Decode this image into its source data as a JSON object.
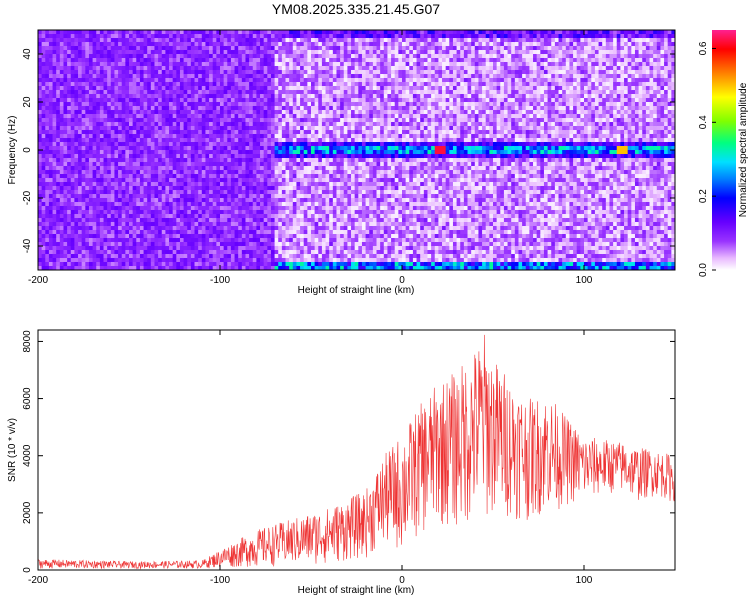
{
  "title": "YM08.2025.335.21.45.G07",
  "chart_data": [
    {
      "type": "heatmap",
      "xlabel": "Height of straight line (km)",
      "ylabel": "Frequency (Hz)",
      "xlim": [
        -200,
        150
      ],
      "ylim": [
        -50,
        50
      ],
      "x_ticks": [
        -200,
        -100,
        0,
        100
      ],
      "y_ticks": [
        -40,
        -20,
        0,
        20,
        40
      ],
      "colorbar": {
        "label": "Normalized spectral amplitude",
        "range": [
          0,
          0.65
        ],
        "ticks": [
          0.0,
          0.2,
          0.4,
          0.6
        ],
        "colors": [
          "#ffffff",
          "#e8b8ff",
          "#9933ff",
          "#6600ff",
          "#0000ff",
          "#0080ff",
          "#00e0ff",
          "#00ff80",
          "#80ff00",
          "#ffff00",
          "#ff8000",
          "#ff0000",
          "#ff2090"
        ]
      },
      "features": [
        {
          "name": "Strong line at 0 Hz",
          "x_range": [
            -70,
            150
          ],
          "frequency": 0,
          "amplitude": 0.35
        },
        {
          "name": "Edge band at -50 Hz",
          "x_range": [
            -70,
            150
          ],
          "frequency": -48,
          "amplitude": 0.28
        },
        {
          "name": "Edge band at +50 Hz",
          "x_range": [
            -70,
            150
          ],
          "frequency": 48,
          "amplitude": 0.15
        },
        {
          "name": "Noise background",
          "x_range": [
            -200,
            -70
          ],
          "amplitude": 0.09
        },
        {
          "name": "Noise background",
          "x_range": [
            -70,
            150
          ],
          "amplitude": 0.03
        }
      ]
    },
    {
      "type": "line",
      "xlabel": "Height of straight line (km)",
      "ylabel": "SNR (10 * v/v)",
      "xlim": [
        -200,
        150
      ],
      "ylim": [
        0,
        8400
      ],
      "x_ticks": [
        -200,
        -100,
        0,
        100
      ],
      "y_ticks": [
        0,
        2000,
        4000,
        6000,
        8000
      ],
      "color": "#ee3333",
      "envelope": {
        "x": [
          -200,
          -150,
          -110,
          -95,
          -80,
          -60,
          -40,
          -20,
          -10,
          0,
          10,
          20,
          30,
          40,
          45,
          50,
          60,
          70,
          80,
          90,
          100,
          110,
          120,
          130,
          140,
          150
        ],
        "lower": [
          50,
          50,
          50,
          80,
          100,
          150,
          200,
          400,
          800,
          600,
          1200,
          1500,
          1400,
          1600,
          1700,
          1800,
          1800,
          1700,
          2000,
          2200,
          2400,
          2600,
          2700,
          2400,
          2600,
          2300
        ],
        "upper": [
          380,
          300,
          330,
          900,
          1400,
          1800,
          2200,
          2800,
          4000,
          4800,
          5800,
          6600,
          7000,
          7800,
          8400,
          7500,
          6700,
          6000,
          6200,
          5400,
          4700,
          4600,
          4500,
          4300,
          4200,
          4000
        ]
      }
    }
  ]
}
